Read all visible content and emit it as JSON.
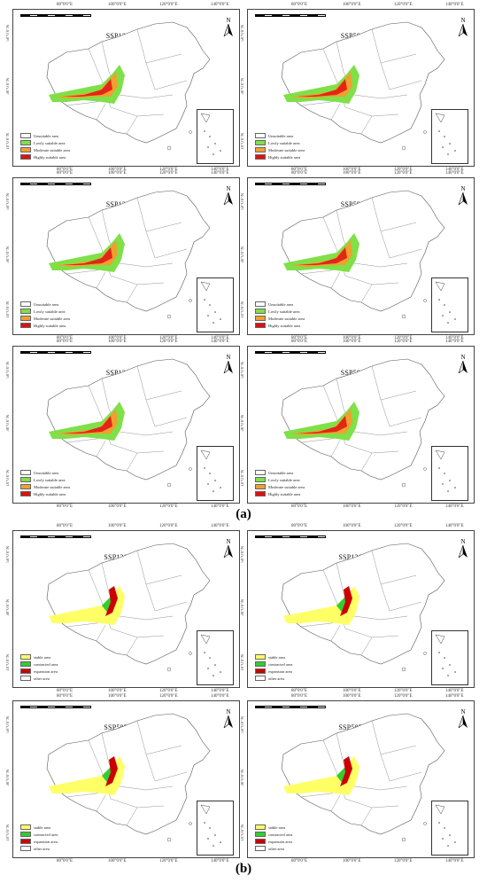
{
  "figure": {
    "label_a": "(a)",
    "label_b": "(b)"
  },
  "ticks": {
    "top": [
      "80°0'0\"E",
      "100°0'0\"E",
      "120°0'0\"E",
      "140°0'0\"E"
    ],
    "left": [
      "50°0'0\"N",
      "30°0'0\"N",
      "10°0'0\"N"
    ]
  },
  "north_label": "N",
  "colors": {
    "unsuitable": "#ffffff",
    "low": "#7fe048",
    "moderate": "#f0a030",
    "high": "#e01010",
    "stable": "#ffff66",
    "contracted": "#33cc33",
    "expansion": "#cc0000",
    "other": "#ffffff"
  },
  "legend_a": [
    {
      "label": "Unsuitable area",
      "color_key": "unsuitable"
    },
    {
      "label": "Lowly suitable area",
      "color_key": "low"
    },
    {
      "label": "Moderate suitable area",
      "color_key": "moderate"
    },
    {
      "label": "Highly suitable area",
      "color_key": "high"
    }
  ],
  "legend_b": [
    {
      "label": "stable area",
      "color_key": "stable"
    },
    {
      "label": "contracted area",
      "color_key": "contracted"
    },
    {
      "label": "expansion area",
      "color_key": "expansion"
    },
    {
      "label": "other area",
      "color_key": "other"
    }
  ],
  "panels_a": [
    {
      "title": "SSP126 0030"
    },
    {
      "title": "SSP585 0030"
    },
    {
      "title": "SSP126 3050"
    },
    {
      "title": "SSP585 3050"
    },
    {
      "title": "SSP126 5070"
    },
    {
      "title": "SSP585 5070"
    }
  ],
  "panels_b": [
    {
      "title": "SSP126 2050S"
    },
    {
      "title": "SSP126 2090S"
    },
    {
      "title": "SSP585 2050S"
    },
    {
      "title": "SSP585 2090S"
    }
  ]
}
